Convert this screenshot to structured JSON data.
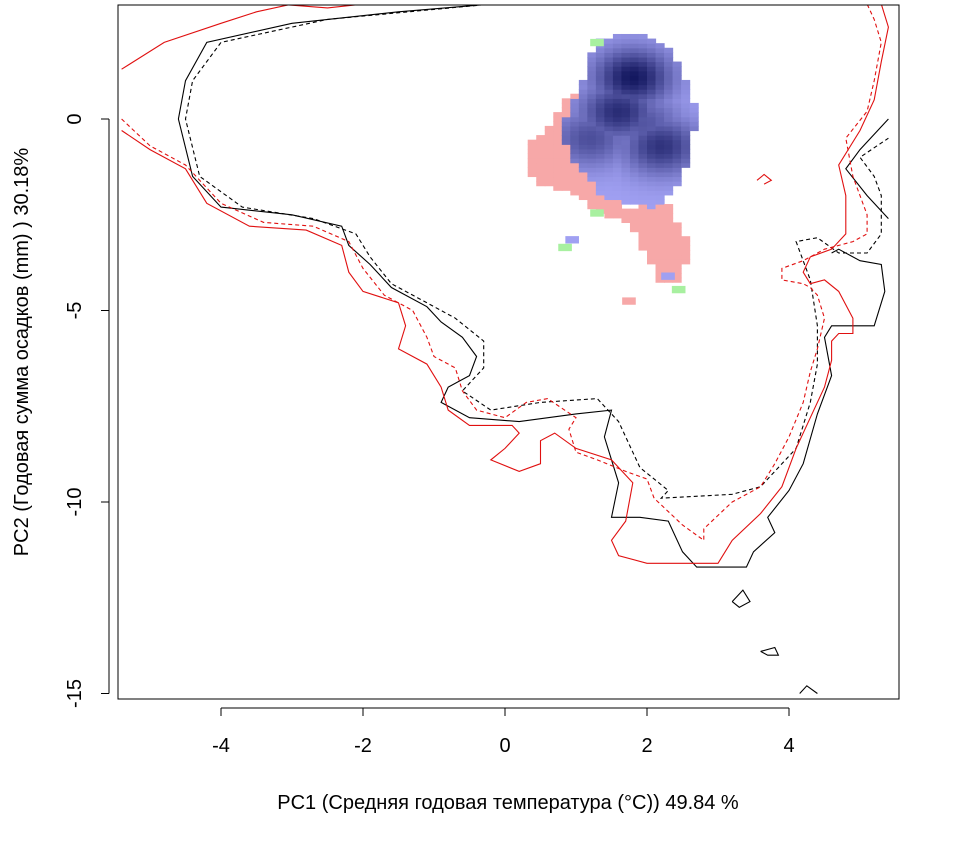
{
  "chart_data": {
    "type": "heatmap",
    "title": "",
    "xlabel": "PC1 (Средняя годовая температура (°C)) 49.84 %",
    "ylabel": "PC2 (Годовая сумма осадков  (mm) ) 30.18%",
    "xlim": [
      -5.4,
      5.5
    ],
    "ylim": [
      -15.1,
      3
    ],
    "x_ticks": [
      {
        "value": -4,
        "label": "-4"
      },
      {
        "value": -2,
        "label": "-2"
      },
      {
        "value": 0,
        "label": "0"
      },
      {
        "value": 2,
        "label": "2"
      },
      {
        "value": 4,
        "label": "4"
      }
    ],
    "y_ticks": [
      {
        "value": 0,
        "label": "0"
      },
      {
        "value": -5,
        "label": "-5"
      },
      {
        "value": -10,
        "label": "-10"
      },
      {
        "value": -15,
        "label": "-15"
      }
    ],
    "colors": {
      "red_only": "#f7a8a8",
      "green_only": "#a8f0a0",
      "overlap_light": "#a0a0f2",
      "overlap_dark": "#141860",
      "envelope_a": "#000000",
      "envelope_b": "#e01010"
    },
    "contours": [
      {
        "color": "#000000",
        "dash": false,
        "points": [
          [
            -0.2,
            3
          ],
          [
            -1.5,
            2.8
          ],
          [
            -3,
            2.5
          ],
          [
            -4.2,
            2
          ],
          [
            -4.5,
            1
          ],
          [
            -4.6,
            0
          ],
          [
            -4.4,
            -1.5
          ],
          [
            -4,
            -2.3
          ],
          [
            -3,
            -2.5
          ],
          [
            -2.3,
            -2.8
          ],
          [
            -2.2,
            -3.3
          ],
          [
            -1.9,
            -3.8
          ],
          [
            -1.6,
            -4.4
          ],
          [
            -1.1,
            -4.9
          ],
          [
            -0.9,
            -5.3
          ],
          [
            -0.6,
            -5.7
          ],
          [
            -0.4,
            -6.2
          ],
          [
            -0.5,
            -6.7
          ],
          [
            -0.8,
            -7
          ],
          [
            -0.9,
            -7.4
          ],
          [
            -0.5,
            -7.8
          ],
          [
            0.2,
            -7.9
          ],
          [
            1.0,
            -7.7
          ],
          [
            1.5,
            -7.6
          ],
          [
            1.4,
            -8.3
          ],
          [
            1.6,
            -9.5
          ],
          [
            1.5,
            -10.4
          ],
          [
            1.9,
            -10.4
          ],
          [
            2.3,
            -10.5
          ],
          [
            2.5,
            -11.3
          ],
          [
            2.7,
            -11.7
          ],
          [
            3.4,
            -11.7
          ],
          [
            3.5,
            -11.3
          ],
          [
            3.8,
            -10.8
          ],
          [
            3.7,
            -10.4
          ],
          [
            4.0,
            -9.7
          ],
          [
            4.2,
            -9.0
          ],
          [
            4.4,
            -7.7
          ],
          [
            4.6,
            -6.7
          ],
          [
            4.5,
            -5.7
          ],
          [
            4.6,
            -5.4
          ],
          [
            5.2,
            -5.4
          ],
          [
            5.35,
            -4.5
          ],
          [
            5.3,
            -3.8
          ],
          [
            5.0,
            -3.7
          ],
          [
            4.7,
            -3.4
          ],
          [
            4.6,
            -3.5
          ]
        ]
      },
      {
        "color": "#000000",
        "dash": true,
        "points": [
          [
            -0.2,
            3
          ],
          [
            -2.5,
            2.6
          ],
          [
            -4.0,
            2.0
          ],
          [
            -4.4,
            1
          ],
          [
            -4.5,
            0
          ],
          [
            -4.3,
            -1.5
          ],
          [
            -3.7,
            -2.3
          ],
          [
            -2.7,
            -2.6
          ],
          [
            -2.1,
            -3.0
          ],
          [
            -1.9,
            -3.6
          ],
          [
            -1.6,
            -4.3
          ],
          [
            -1.1,
            -4.8
          ],
          [
            -0.7,
            -5.2
          ],
          [
            -0.3,
            -5.8
          ],
          [
            -0.3,
            -6.5
          ],
          [
            -0.6,
            -7.1
          ],
          [
            -0.2,
            -7.6
          ],
          [
            0.5,
            -7.4
          ],
          [
            1.3,
            -7.3
          ],
          [
            1.6,
            -7.9
          ],
          [
            1.9,
            -9.1
          ],
          [
            2.3,
            -9.7
          ],
          [
            2.2,
            -9.9
          ],
          [
            3.2,
            -9.8
          ],
          [
            3.6,
            -9.6
          ],
          [
            3.8,
            -9.2
          ],
          [
            4.1,
            -8.6
          ],
          [
            4.3,
            -7.4
          ],
          [
            4.4,
            -6.4
          ],
          [
            4.4,
            -5.4
          ],
          [
            4.3,
            -4.2
          ],
          [
            4.1,
            -3.2
          ],
          [
            4.4,
            -3.1
          ],
          [
            4.7,
            -3.5
          ],
          [
            5.1,
            -3.5
          ],
          [
            5.3,
            -3.0
          ],
          [
            5.3,
            -2.0
          ],
          [
            5.2,
            -1.5
          ],
          [
            5.0,
            -1.0
          ],
          [
            5.4,
            -0.5
          ]
        ]
      },
      {
        "color": "#000000",
        "dash": false,
        "points": [
          [
            5.4,
            0
          ],
          [
            5.0,
            -0.8
          ],
          [
            4.8,
            -1.3
          ],
          [
            5.1,
            -2.0
          ],
          [
            5.4,
            -2.6
          ]
        ]
      },
      {
        "color": "#e01010",
        "dash": false,
        "points": [
          [
            -5.4,
            1.3
          ],
          [
            -4.8,
            2.0
          ],
          [
            -4.0,
            2.5
          ],
          [
            -3.5,
            2.8
          ],
          [
            -3.0,
            3.0
          ]
        ]
      },
      {
        "color": "#e01010",
        "dash": false,
        "points": [
          [
            -5.4,
            -0.3
          ],
          [
            -5.0,
            -0.8
          ],
          [
            -4.5,
            -1.3
          ],
          [
            -4.2,
            -2.2
          ],
          [
            -3.6,
            -2.8
          ],
          [
            -2.8,
            -2.9
          ],
          [
            -2.3,
            -3.3
          ],
          [
            -2.2,
            -4.0
          ],
          [
            -2.0,
            -4.5
          ],
          [
            -1.5,
            -4.8
          ],
          [
            -1.4,
            -5.4
          ],
          [
            -1.5,
            -6.0
          ],
          [
            -1.1,
            -6.4
          ],
          [
            -0.9,
            -7.0
          ],
          [
            -0.8,
            -7.6
          ],
          [
            -0.5,
            -8.0
          ],
          [
            0.1,
            -8.0
          ],
          [
            0.2,
            -8.2
          ],
          [
            0,
            -8.6
          ],
          [
            -0.2,
            -8.9
          ],
          [
            0.2,
            -9.2
          ],
          [
            0.5,
            -9.0
          ],
          [
            0.5,
            -8.4
          ],
          [
            0.7,
            -8.2
          ],
          [
            1.0,
            -8.6
          ],
          [
            1.5,
            -8.9
          ],
          [
            1.8,
            -9.5
          ],
          [
            1.7,
            -10.5
          ],
          [
            1.5,
            -11.0
          ],
          [
            1.6,
            -11.4
          ],
          [
            2.0,
            -11.6
          ],
          [
            3.0,
            -11.6
          ],
          [
            3.2,
            -11.0
          ],
          [
            3.6,
            -10.3
          ],
          [
            3.9,
            -9.6
          ],
          [
            4.1,
            -8.6
          ],
          [
            4.3,
            -7.8
          ],
          [
            4.5,
            -7.0
          ],
          [
            4.6,
            -6.3
          ],
          [
            4.6,
            -5.8
          ],
          [
            4.7,
            -5.6
          ],
          [
            4.9,
            -5.6
          ],
          [
            4.9,
            -5.2
          ],
          [
            4.7,
            -4.5
          ],
          [
            4.5,
            -4.2
          ],
          [
            4.3,
            -4.3
          ],
          [
            4.2,
            -4.0
          ],
          [
            4.3,
            -3.6
          ],
          [
            4.6,
            -3.4
          ],
          [
            4.8,
            -3.0
          ],
          [
            4.8,
            -2.0
          ],
          [
            4.7,
            -1.2
          ],
          [
            5.0,
            -0.3
          ],
          [
            5.2,
            0.5
          ],
          [
            5.3,
            1.5
          ],
          [
            5.4,
            2.4
          ],
          [
            5.3,
            3.0
          ]
        ]
      },
      {
        "color": "#e01010",
        "dash": true,
        "points": [
          [
            -5.4,
            0.0
          ],
          [
            -5.0,
            -0.7
          ],
          [
            -4.5,
            -1.2
          ],
          [
            -4.0,
            -2.2
          ],
          [
            -3.4,
            -2.7
          ],
          [
            -2.7,
            -2.8
          ],
          [
            -2.2,
            -3.2
          ],
          [
            -2.0,
            -3.9
          ],
          [
            -1.7,
            -4.6
          ],
          [
            -1.3,
            -5.0
          ],
          [
            -1.1,
            -5.7
          ],
          [
            -1.0,
            -6.2
          ],
          [
            -0.7,
            -6.5
          ],
          [
            -0.6,
            -7.1
          ],
          [
            -0.4,
            -7.6
          ],
          [
            0.0,
            -7.8
          ],
          [
            0.3,
            -7.4
          ],
          [
            0.6,
            -7.3
          ],
          [
            1.0,
            -7.8
          ],
          [
            0.9,
            -8.1
          ],
          [
            1.0,
            -8.7
          ],
          [
            1.3,
            -8.9
          ],
          [
            1.7,
            -9.2
          ],
          [
            2.0,
            -9.4
          ],
          [
            2.1,
            -9.9
          ],
          [
            2.5,
            -10.6
          ],
          [
            2.8,
            -11.0
          ],
          [
            2.8,
            -10.7
          ],
          [
            3.2,
            -10.0
          ],
          [
            3.6,
            -9.6
          ],
          [
            3.8,
            -9.0
          ],
          [
            4.0,
            -8.3
          ],
          [
            4.2,
            -7.4
          ],
          [
            4.3,
            -6.6
          ],
          [
            4.4,
            -6.0
          ],
          [
            4.5,
            -5.2
          ],
          [
            4.4,
            -4.6
          ],
          [
            4.3,
            -4.4
          ],
          [
            4.2,
            -4.3
          ],
          [
            3.9,
            -4.2
          ],
          [
            3.9,
            -3.9
          ],
          [
            4.2,
            -3.7
          ],
          [
            4.5,
            -3.4
          ],
          [
            4.9,
            -3.2
          ],
          [
            5.1,
            -3.0
          ],
          [
            5.1,
            -2.5
          ],
          [
            4.9,
            -1.5
          ],
          [
            4.8,
            -0.5
          ],
          [
            5.1,
            0.2
          ],
          [
            5.2,
            1.0
          ],
          [
            5.3,
            2.0
          ],
          [
            5.2,
            2.6
          ],
          [
            5.1,
            3.0
          ]
        ]
      },
      {
        "color": "#e01010",
        "dash": false,
        "points": [
          [
            -3.2,
            3.0
          ],
          [
            -2.5,
            2.9
          ],
          [
            -2.0,
            3.0
          ]
        ]
      }
    ],
    "small_loops": [
      {
        "color": "#000000",
        "points": [
          [
            3.2,
            -12.6
          ],
          [
            3.35,
            -12.3
          ],
          [
            3.45,
            -12.6
          ],
          [
            3.3,
            -12.75
          ],
          [
            3.2,
            -12.6
          ]
        ]
      },
      {
        "color": "#000000",
        "points": [
          [
            3.6,
            -13.9
          ],
          [
            3.8,
            -13.8
          ],
          [
            3.85,
            -14.0
          ],
          [
            3.7,
            -14.0
          ],
          [
            3.6,
            -13.9
          ]
        ]
      },
      {
        "color": "#000000",
        "points": [
          [
            4.15,
            -15.0
          ],
          [
            4.25,
            -14.8
          ],
          [
            4.4,
            -15.0
          ]
        ]
      },
      {
        "color": "#e01010",
        "points": [
          [
            3.55,
            -1.6
          ],
          [
            3.65,
            -1.45
          ],
          [
            3.75,
            -1.6
          ],
          [
            3.65,
            -1.7
          ]
        ]
      }
    ],
    "grid_cells": {
      "cell_size": 0.12,
      "blue_core": [
        [
          1.8,
          1.1,
          1.0
        ],
        [
          1.6,
          0.2,
          0.85
        ],
        [
          2.2,
          -0.7,
          0.8
        ],
        [
          1.2,
          -0.5,
          0.6
        ],
        [
          1.95,
          -0.1,
          0.55
        ]
      ],
      "blue_region": [
        [
          1.25,
          2.0
        ],
        [
          1.75,
          2.3
        ],
        [
          2.3,
          1.9
        ],
        [
          2.5,
          1.2
        ],
        [
          2.7,
          0.2
        ],
        [
          2.6,
          -1.0
        ],
        [
          2.4,
          -1.8
        ],
        [
          2.1,
          -2.3
        ],
        [
          1.4,
          -2.1
        ],
        [
          1.2,
          -1.5
        ],
        [
          0.9,
          -1.0
        ],
        [
          0.8,
          -0.2
        ],
        [
          1.0,
          0.6
        ],
        [
          1.15,
          1.2
        ]
      ],
      "red_region": [
        [
          0.9,
          0.7
        ],
        [
          1.3,
          0.7
        ],
        [
          1.4,
          -0.3
        ],
        [
          1.3,
          -1.4
        ],
        [
          1.7,
          -2.3
        ],
        [
          2.3,
          -2.2
        ],
        [
          2.6,
          -3.3
        ],
        [
          2.5,
          -4.2
        ],
        [
          2.2,
          -4.3
        ],
        [
          2.0,
          -3.6
        ],
        [
          1.8,
          -2.8
        ],
        [
          1.4,
          -2.5
        ],
        [
          0.9,
          -1.9
        ],
        [
          0.5,
          -1.7
        ],
        [
          0.3,
          -1.3
        ],
        [
          0.3,
          -0.7
        ],
        [
          0.6,
          -0.2
        ]
      ]
    }
  }
}
